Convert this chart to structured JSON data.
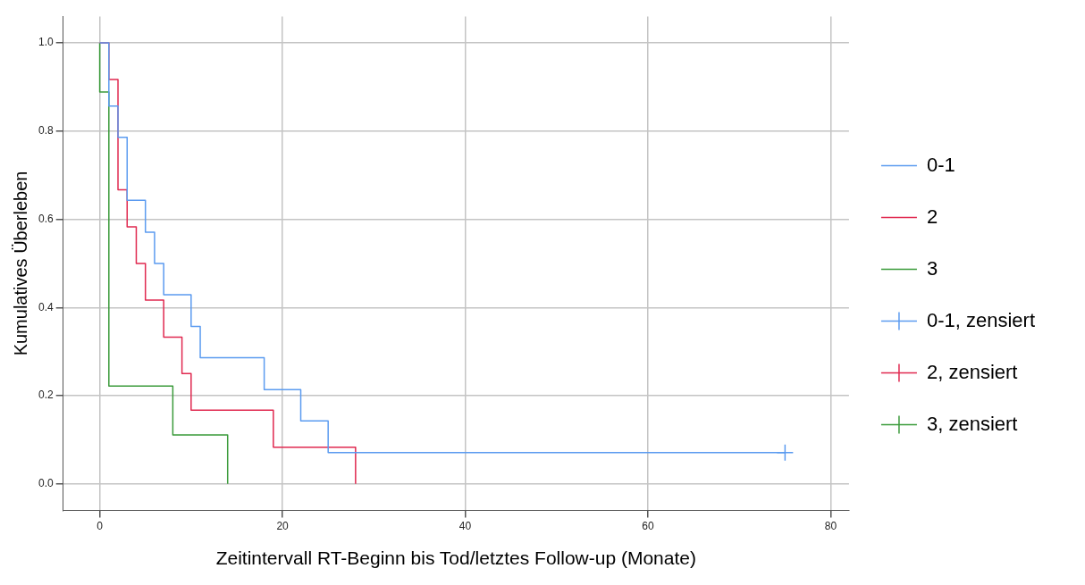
{
  "chart_data": {
    "type": "step",
    "xlabel": "Zeitintervall RT-Beginn bis Tod/letztes Follow-up (Monate)",
    "ylabel": "Kumulatives Überleben",
    "xlim": [
      -4,
      82
    ],
    "ylim": [
      -0.06,
      1.06
    ],
    "xticks": [
      0,
      20,
      40,
      60,
      80
    ],
    "yticks": [
      {
        "value": 0,
        "label": "0.0"
      },
      {
        "value": 0.2,
        "label": "0.2"
      },
      {
        "value": 0.4,
        "label": "0.4"
      },
      {
        "value": 0.6,
        "label": "0.6"
      },
      {
        "value": 0.8,
        "label": "0.8"
      },
      {
        "value": 1,
        "label": "1.0"
      }
    ],
    "grid": true,
    "legend": "right",
    "marker": "none",
    "series": [
      {
        "name": "0-1",
        "color": "#5b9bf0",
        "x": [
          0,
          1,
          2,
          3,
          5,
          6,
          7,
          10,
          11,
          18,
          22,
          25,
          75
        ],
        "values": [
          1,
          0.857,
          0.786,
          0.643,
          0.571,
          0.5,
          0.429,
          0.357,
          0.286,
          0.214,
          0.143,
          0.071,
          0.071
        ]
      },
      {
        "name": "2",
        "color": "#e0284f",
        "x": [
          0,
          1,
          2,
          3,
          4,
          5,
          7,
          9,
          10,
          19,
          28
        ],
        "values": [
          1,
          0.917,
          0.667,
          0.583,
          0.5,
          0.417,
          0.333,
          0.25,
          0.167,
          0.083,
          0
        ]
      },
      {
        "name": "3",
        "color": "#3a9a3a",
        "x": [
          0,
          0,
          1,
          8,
          14
        ],
        "values": [
          1,
          0.889,
          0.222,
          0.111,
          0
        ]
      },
      {
        "name": "0-1, zensiert",
        "type": "scatter",
        "marker": "cross",
        "color": "#5b9bf0",
        "x": [
          75
        ],
        "values": [
          0.071
        ]
      },
      {
        "name": "2, zensiert",
        "type": "scatter",
        "marker": "cross",
        "color": "#e0284f"
      },
      {
        "name": "3, zensiert",
        "type": "scatter",
        "marker": "cross",
        "color": "#3a9a3a"
      }
    ]
  }
}
